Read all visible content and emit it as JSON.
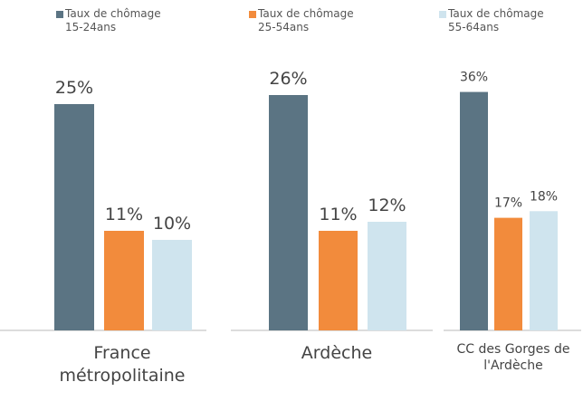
{
  "legend": [
    {
      "name": "Taux de chômage\n15-24ans",
      "color": "#5b7483"
    },
    {
      "name": "Taux de chômage\n25-54ans",
      "color": "#f28b3c"
    },
    {
      "name": "Taux de chômage\n55-64ans",
      "color": "#cfe4ee"
    }
  ],
  "chart_data": [
    {
      "type": "bar",
      "title": "France\nmétropolitaine",
      "values": [
        25,
        11,
        10
      ],
      "value_labels": [
        "25%",
        "11%",
        "10%"
      ],
      "ylim": [
        0,
        30
      ]
    },
    {
      "type": "bar",
      "title": "Ardèche",
      "values": [
        26,
        11,
        12
      ],
      "value_labels": [
        "26%",
        "11%",
        "12%"
      ],
      "ylim": [
        0,
        30
      ]
    },
    {
      "type": "bar",
      "title": "CC des Gorges de\nl'Ardèche",
      "values": [
        36,
        17,
        18
      ],
      "value_labels": [
        "36%",
        "17%",
        "18%"
      ],
      "ylim": [
        0,
        41
      ]
    }
  ]
}
